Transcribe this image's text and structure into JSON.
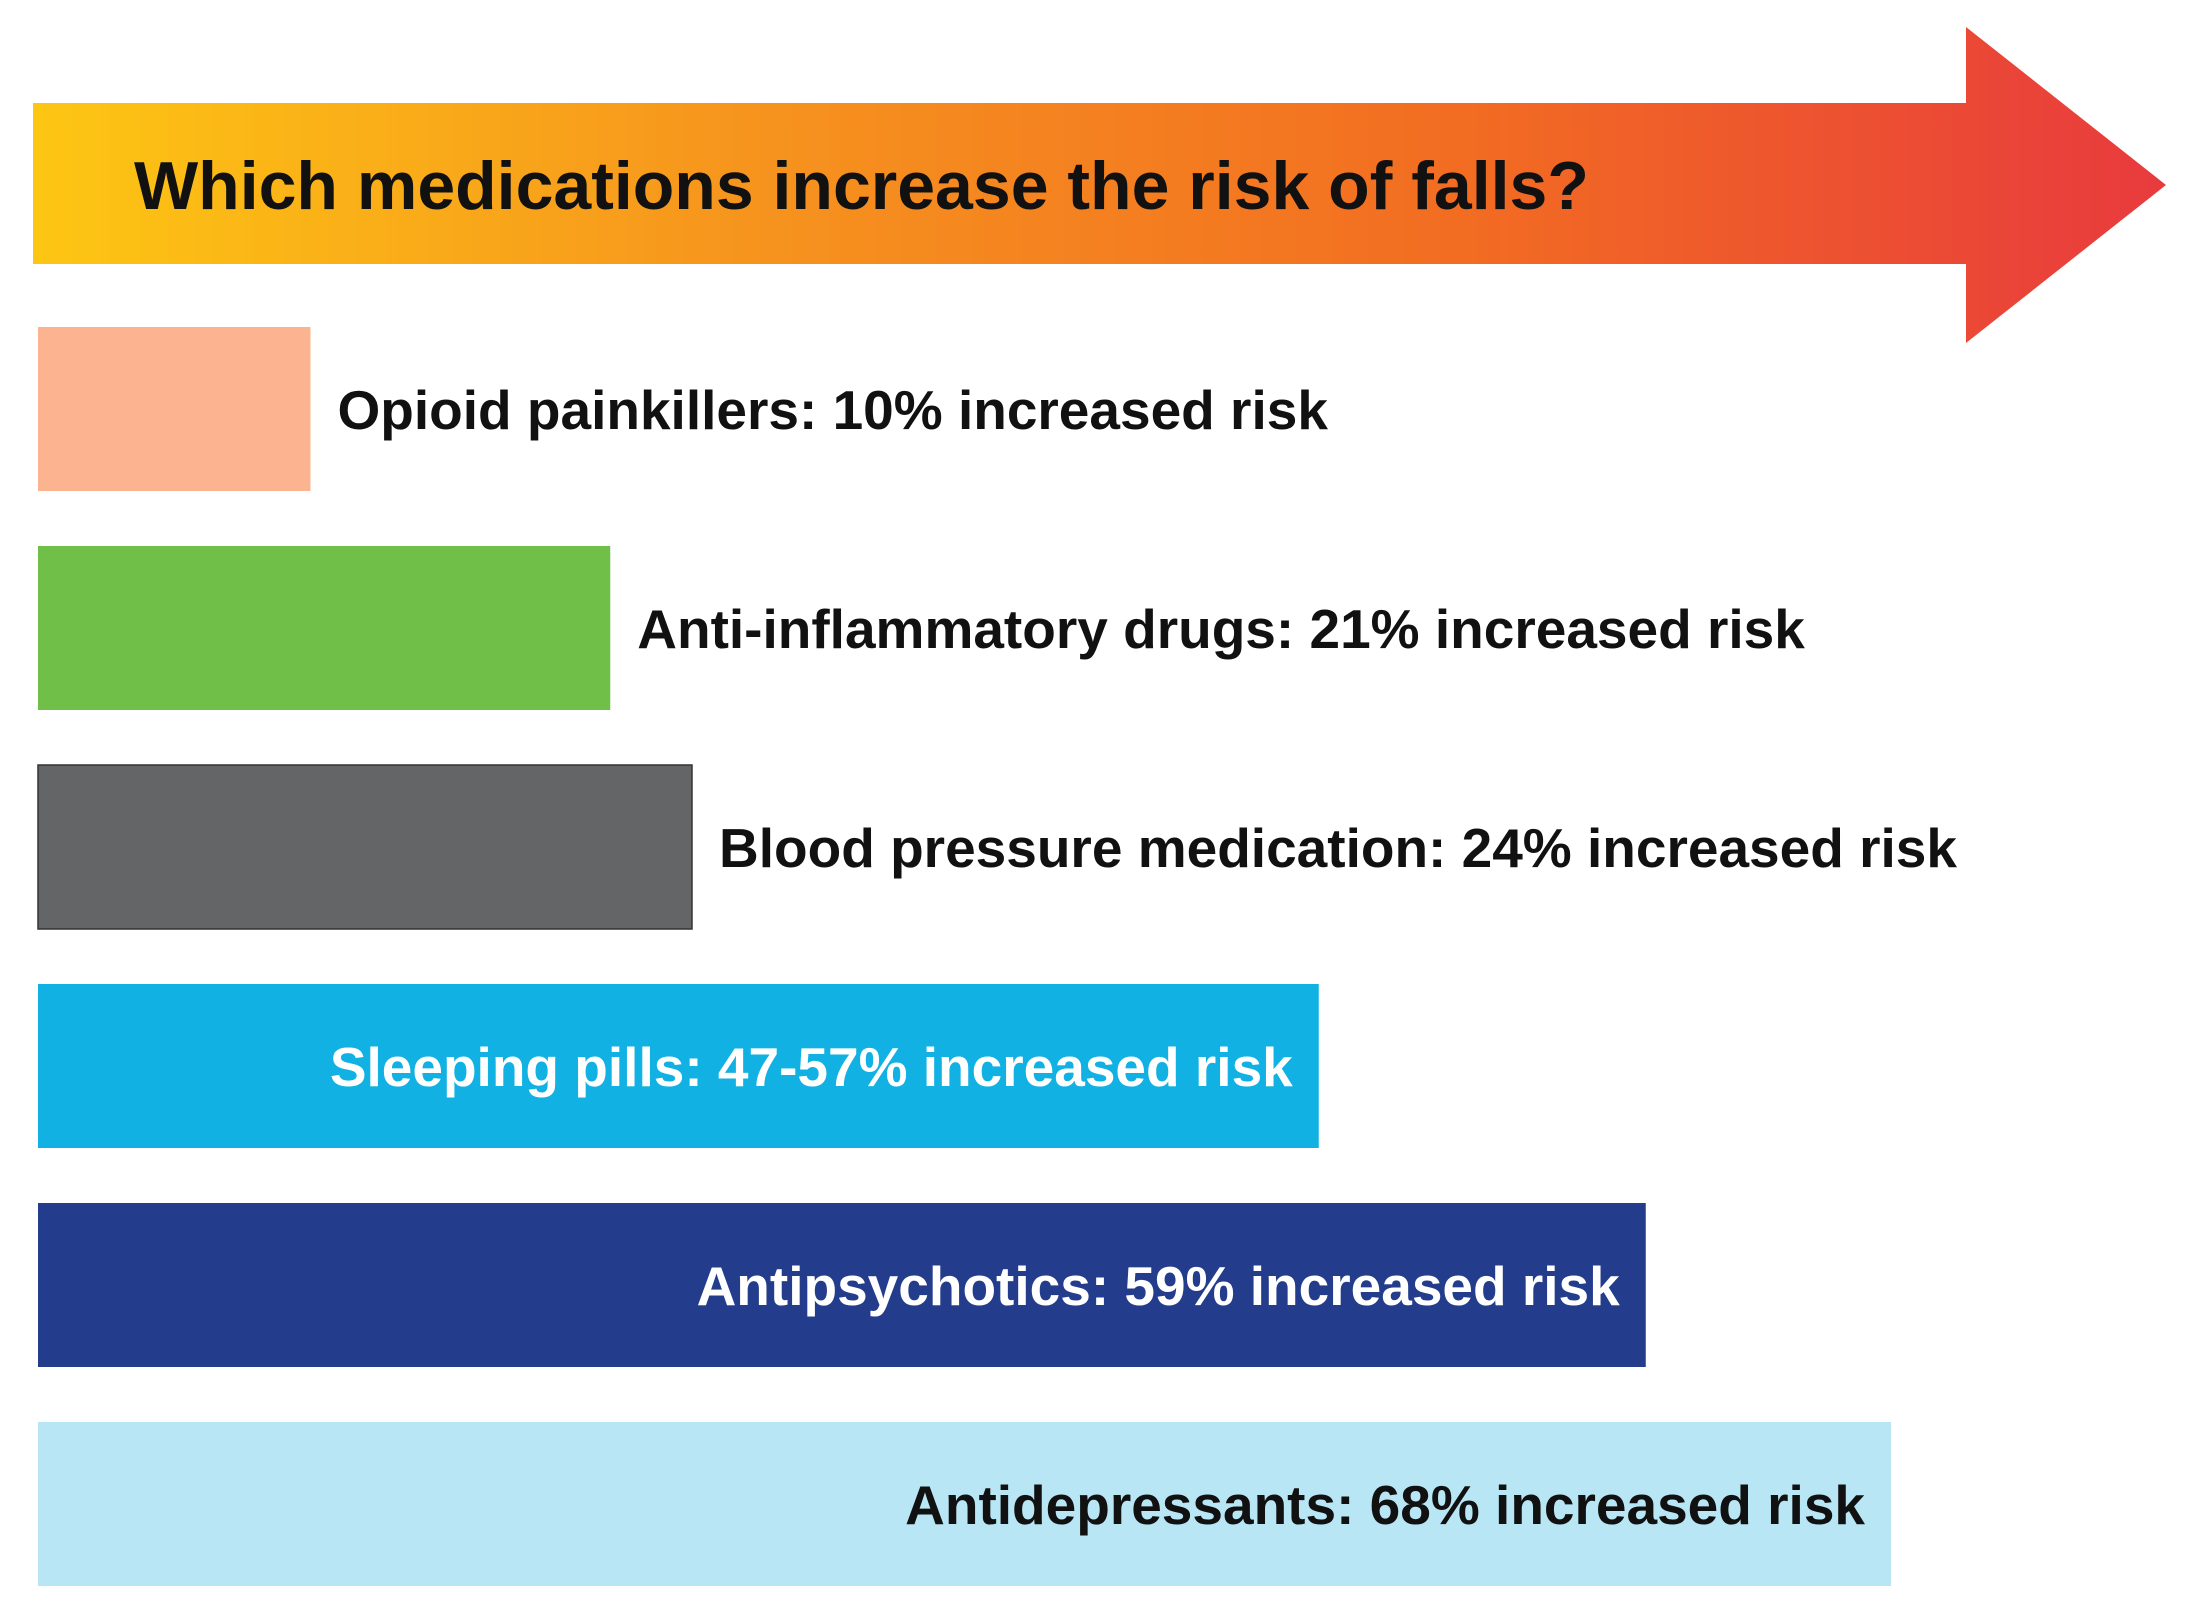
{
  "chart_data": {
    "type": "bar",
    "orientation": "horizontal",
    "title": "Which medications increase the risk of falls?",
    "xlim": [
      0,
      70
    ],
    "grid": false,
    "legend": "none",
    "bars": [
      {
        "label": "Opioid painkillers: 10% increased risk",
        "value": 10,
        "color": "#fbb48f",
        "label_position": "outside",
        "label_color": "#111111"
      },
      {
        "label": "Anti-inflammatory drugs: 21% increased risk",
        "value": 21,
        "color": "#6fbf49",
        "label_position": "outside",
        "label_color": "#111111"
      },
      {
        "label": "Blood pressure medication: 24% increased risk",
        "value": 24,
        "color": "#646567",
        "label_position": "outside",
        "label_color": "#111111"
      },
      {
        "label": "Sleeping pills: 47-57% increased risk",
        "value": 47,
        "value_high": 57,
        "color": "#12b1e3",
        "label_position": "inside",
        "label_color": "#ffffff"
      },
      {
        "label": "Antipsychotics: 59% increased risk",
        "value": 59,
        "color": "#233d8c",
        "label_position": "inside",
        "label_color": "#ffffff"
      },
      {
        "label": "Antidepressants: 68% increased risk",
        "value": 68,
        "color": "#b8e6f5",
        "label_position": "inside",
        "label_color": "#111111"
      }
    ],
    "arrow_gradient": [
      "#fdc613",
      "#f6921e",
      "#f26b22",
      "#e83a3e"
    ]
  }
}
